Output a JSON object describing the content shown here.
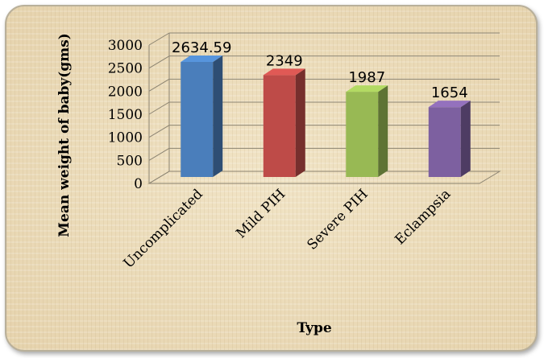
{
  "chart_data": {
    "type": "bar",
    "categories": [
      "Uncomplicated",
      "Mild PIH",
      "Severe PIH",
      "Eclampsia"
    ],
    "values": [
      2634.59,
      2349,
      1987,
      1654
    ],
    "data_labels": [
      "2634.59",
      "2349",
      "1987",
      "1654"
    ],
    "xlabel": "Type",
    "ylabel": "Mean weight of baby(gms)",
    "ylim": [
      0,
      3000
    ],
    "yticks": [
      "0",
      "500",
      "1000",
      "1500",
      "2000",
      "2500",
      "3000"
    ],
    "grid": true,
    "style": "3d-column",
    "colors": [
      "#4a7ebb",
      "#be4b48",
      "#98b954",
      "#7d60a0"
    ]
  }
}
